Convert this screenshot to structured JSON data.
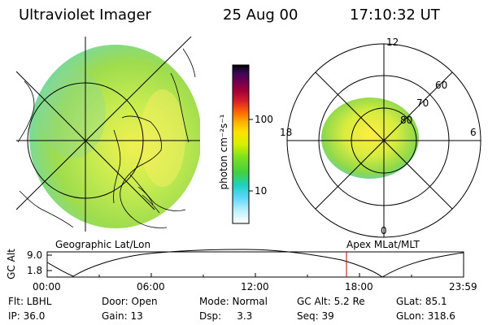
{
  "header": {
    "title": "Ultraviolet Imager",
    "date": "25 Aug 00",
    "time": "17:10:32 UT"
  },
  "left_panel": {
    "caption": "Geographic Lat/Lon"
  },
  "colorbar": {
    "unit_label": "photon cm⁻²s⁻¹",
    "ticks": [
      "100",
      "10"
    ],
    "colors": [
      "#000000",
      "#1a0a3a",
      "#3a0a55",
      "#6a0050",
      "#a0003a",
      "#d8202a",
      "#ff6a00",
      "#ffb000",
      "#ffe000",
      "#d8f000",
      "#80e020",
      "#40d040",
      "#20d0c0",
      "#60d8ff",
      "#c0f0ff",
      "#ffffff"
    ]
  },
  "right_panel": {
    "caption": "Apex MLat/MLT",
    "mlt_labels": [
      "12",
      "18",
      "6",
      "0"
    ],
    "lat_labels": [
      "60",
      "70",
      "80"
    ]
  },
  "orbit_plot": {
    "ylabel": "GC Alt",
    "yticks": [
      "9.0",
      "1.8"
    ],
    "xticks": [
      "00:00",
      "06:00",
      "12:00",
      "18:00",
      "23:59"
    ],
    "marker_color": "#c00000"
  },
  "footer": {
    "rows": [
      [
        "Flt: LBHL",
        "Door: Open",
        "Mode: Normal",
        "GC Alt: 5.2 Re",
        "GLat: 85.1"
      ],
      [
        "IP: 36.0",
        "Gain: 13",
        "Dsp:     3.3",
        "Seq: 39",
        "GLon: 318.6"
      ]
    ]
  }
}
